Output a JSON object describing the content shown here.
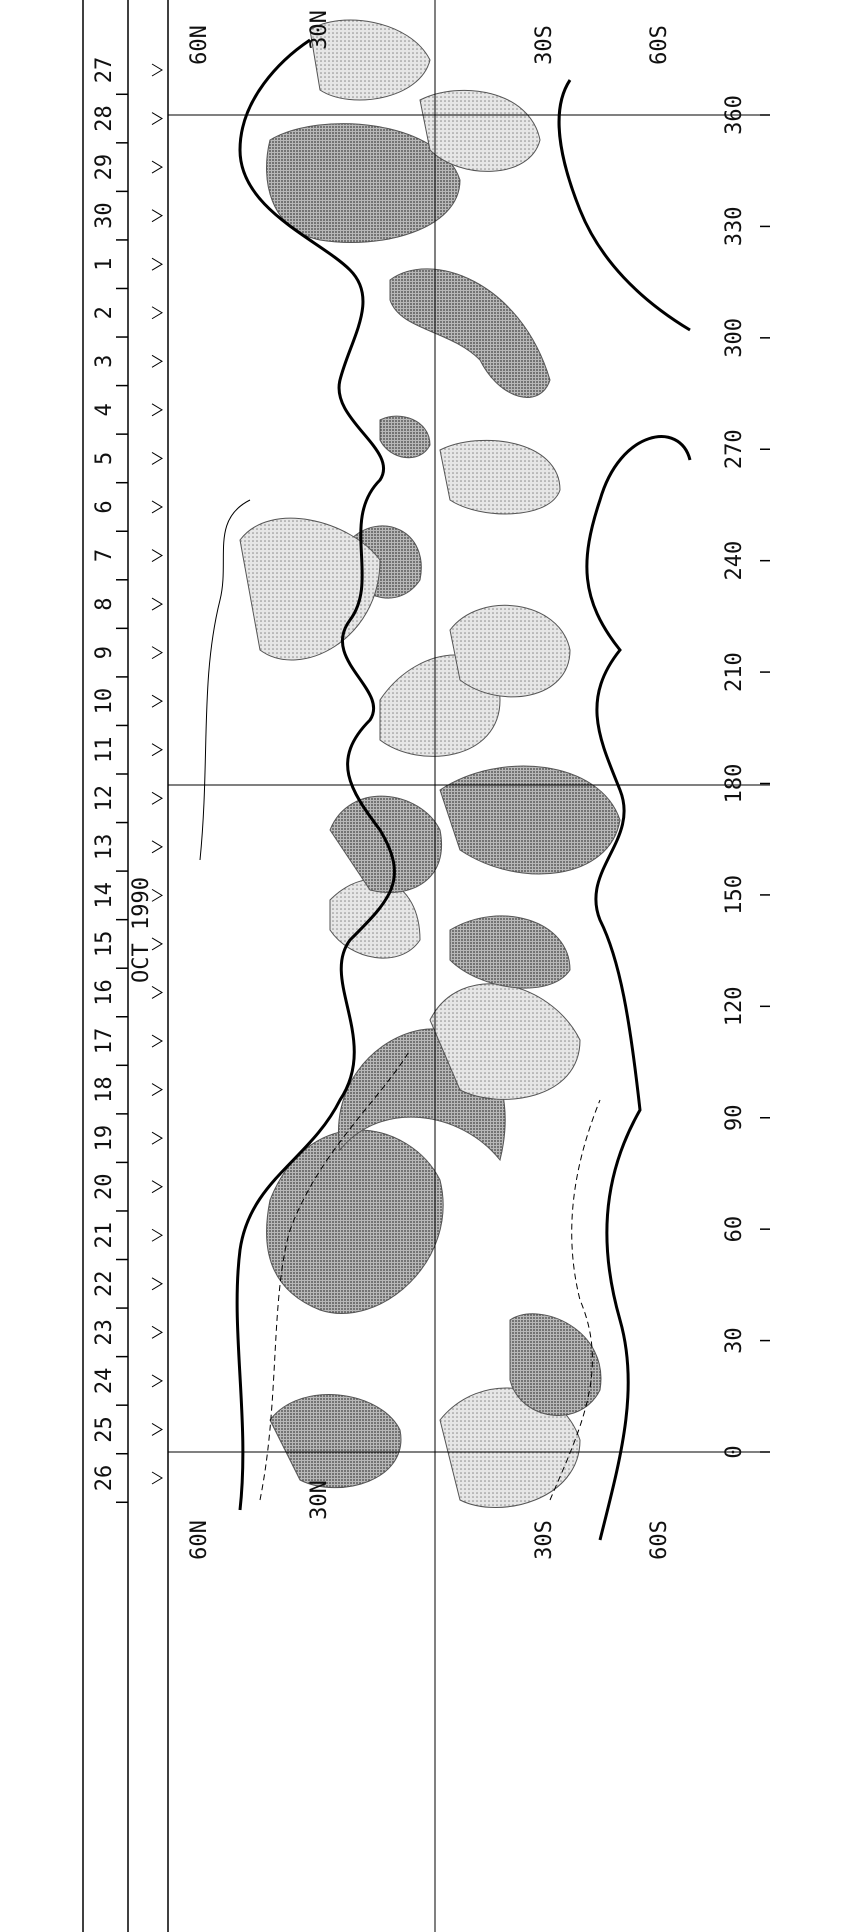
{
  "figure": {
    "days": [
      "26",
      "25",
      "24",
      "23",
      "22",
      "21",
      "20",
      "19",
      "18",
      "17",
      "16",
      "15",
      "14",
      "13",
      "12",
      "11",
      "10",
      "9",
      "8",
      "7",
      "6",
      "5",
      "4",
      "3",
      "2",
      "1",
      "30",
      "29",
      "28",
      "27"
    ],
    "month": "OCT 1990",
    "longitudes": [
      "0",
      "30",
      "60",
      "90",
      "120",
      "150",
      "180",
      "210",
      "240",
      "270",
      "300",
      "330",
      "360"
    ],
    "lat_bottom": [
      "60N",
      "30S",
      "60S"
    ],
    "lat_top": [
      "60N",
      "30S",
      "60S"
    ],
    "lat_inner": [
      "30N",
      "30N"
    ]
  }
}
